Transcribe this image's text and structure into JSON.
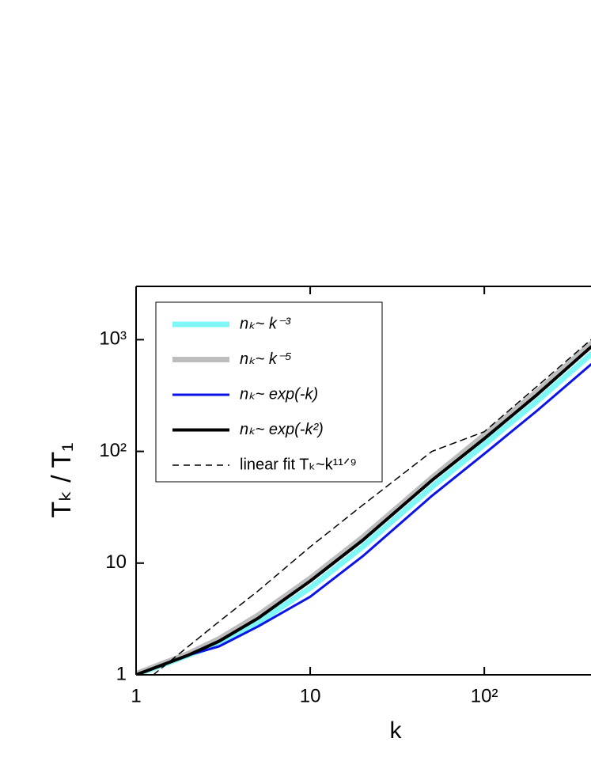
{
  "chart_data": {
    "type": "line",
    "x_label": "k",
    "y_label": "Tₖ / T₁",
    "x": [
      1,
      2,
      3,
      5,
      10,
      20,
      50,
      100,
      200,
      410
    ],
    "series": [
      {
        "name": "nₖ~ k⁻³",
        "color": "#7ff7f7",
        "width": 7,
        "dash": false,
        "values": [
          1,
          1.5,
          1.9,
          2.9,
          6.0,
          14,
          48,
          115,
          280,
          740
        ]
      },
      {
        "name": "nₖ~ k⁻⁵",
        "color": "#bdbdbd",
        "width": 7,
        "dash": false,
        "values": [
          1.02,
          1.55,
          2.1,
          3.4,
          7.3,
          17,
          58,
          140,
          340,
          920
        ]
      },
      {
        "name": "nₖ~ exp(-k)",
        "color": "#0a14e6",
        "width": 3,
        "dash": false,
        "values": [
          1,
          1.5,
          1.8,
          2.7,
          5.0,
          11.5,
          40,
          95,
          230,
          600
        ]
      },
      {
        "name": "nₖ~ exp(-k²)",
        "color": "#000000",
        "width": 4,
        "dash": false,
        "values": [
          1,
          1.5,
          2.0,
          3.2,
          6.9,
          16,
          55,
          130,
          320,
          860
        ]
      },
      {
        "name": "linear fit Tₖ~k¹¹ᐟ⁹",
        "color": "#000000",
        "width": 1.5,
        "dash": true,
        "values": [
          0.75,
          1.8,
          3.0,
          5.6,
          14,
          33,
          100,
          150,
          380,
          1000
        ]
      }
    ],
    "log_x": true,
    "log_y": true,
    "xlim": [
      1,
      410
    ],
    "ylim": [
      1,
      3000
    ],
    "xticks": [
      1,
      10,
      {
        "value": 100,
        "label": "10²"
      }
    ],
    "yticks": [
      1,
      10,
      {
        "value": 100,
        "label": "10²"
      },
      {
        "value": 1000,
        "label": "10³"
      }
    ]
  }
}
